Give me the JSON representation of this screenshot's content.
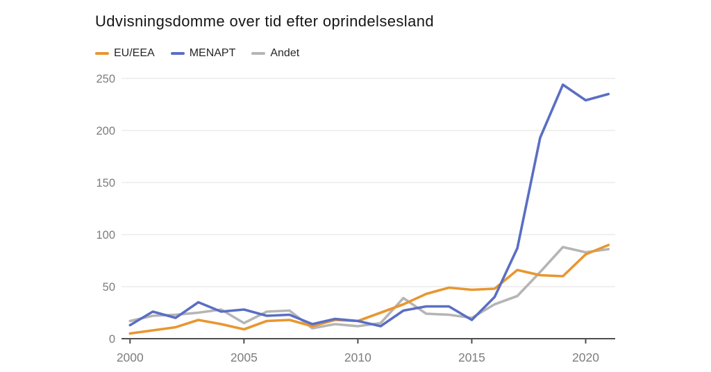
{
  "title": "Udvisningsdomme over tid efter oprindelsesland",
  "legend": [
    {
      "label": "EU/EEA",
      "color": "#E8962F"
    },
    {
      "label": "MENAPT",
      "color": "#5A6EC3"
    },
    {
      "label": "Andet",
      "color": "#B5B5B5"
    }
  ],
  "chart_data": {
    "type": "line",
    "title": "Udvisningsdomme over tid efter oprindelsesland",
    "x": [
      2000,
      2001,
      2002,
      2003,
      2004,
      2005,
      2006,
      2007,
      2008,
      2009,
      2010,
      2011,
      2012,
      2013,
      2014,
      2015,
      2016,
      2017,
      2018,
      2019,
      2020,
      2021
    ],
    "series": [
      {
        "name": "EU/EEA",
        "color": "#E8962F",
        "values": [
          5,
          8,
          11,
          18,
          14,
          9,
          17,
          18,
          12,
          18,
          17,
          25,
          33,
          43,
          49,
          47,
          48,
          66,
          61,
          60,
          81,
          90
        ]
      },
      {
        "name": "MENAPT",
        "color": "#5A6EC3",
        "values": [
          13,
          26,
          20,
          35,
          26,
          28,
          22,
          23,
          14,
          19,
          17,
          12,
          27,
          31,
          31,
          18,
          40,
          87,
          193,
          244,
          229,
          235
        ]
      },
      {
        "name": "Andet",
        "color": "#B5B5B5",
        "values": [
          17,
          22,
          23,
          25,
          28,
          15,
          26,
          27,
          10,
          14,
          12,
          15,
          39,
          24,
          23,
          20,
          33,
          41,
          64,
          88,
          83,
          86
        ]
      }
    ],
    "xlabel": "",
    "ylabel": "",
    "ylim": [
      0,
      250
    ],
    "yticks": [
      0,
      50,
      100,
      150,
      200,
      250
    ],
    "xticks": [
      2000,
      2005,
      2010,
      2015,
      2020
    ],
    "grid": "horizontal",
    "legend_position": "top-left",
    "axis_color": "#4D4D4D",
    "grid_color": "#ECECEC",
    "tick_label_color": "#7D7D7D"
  }
}
